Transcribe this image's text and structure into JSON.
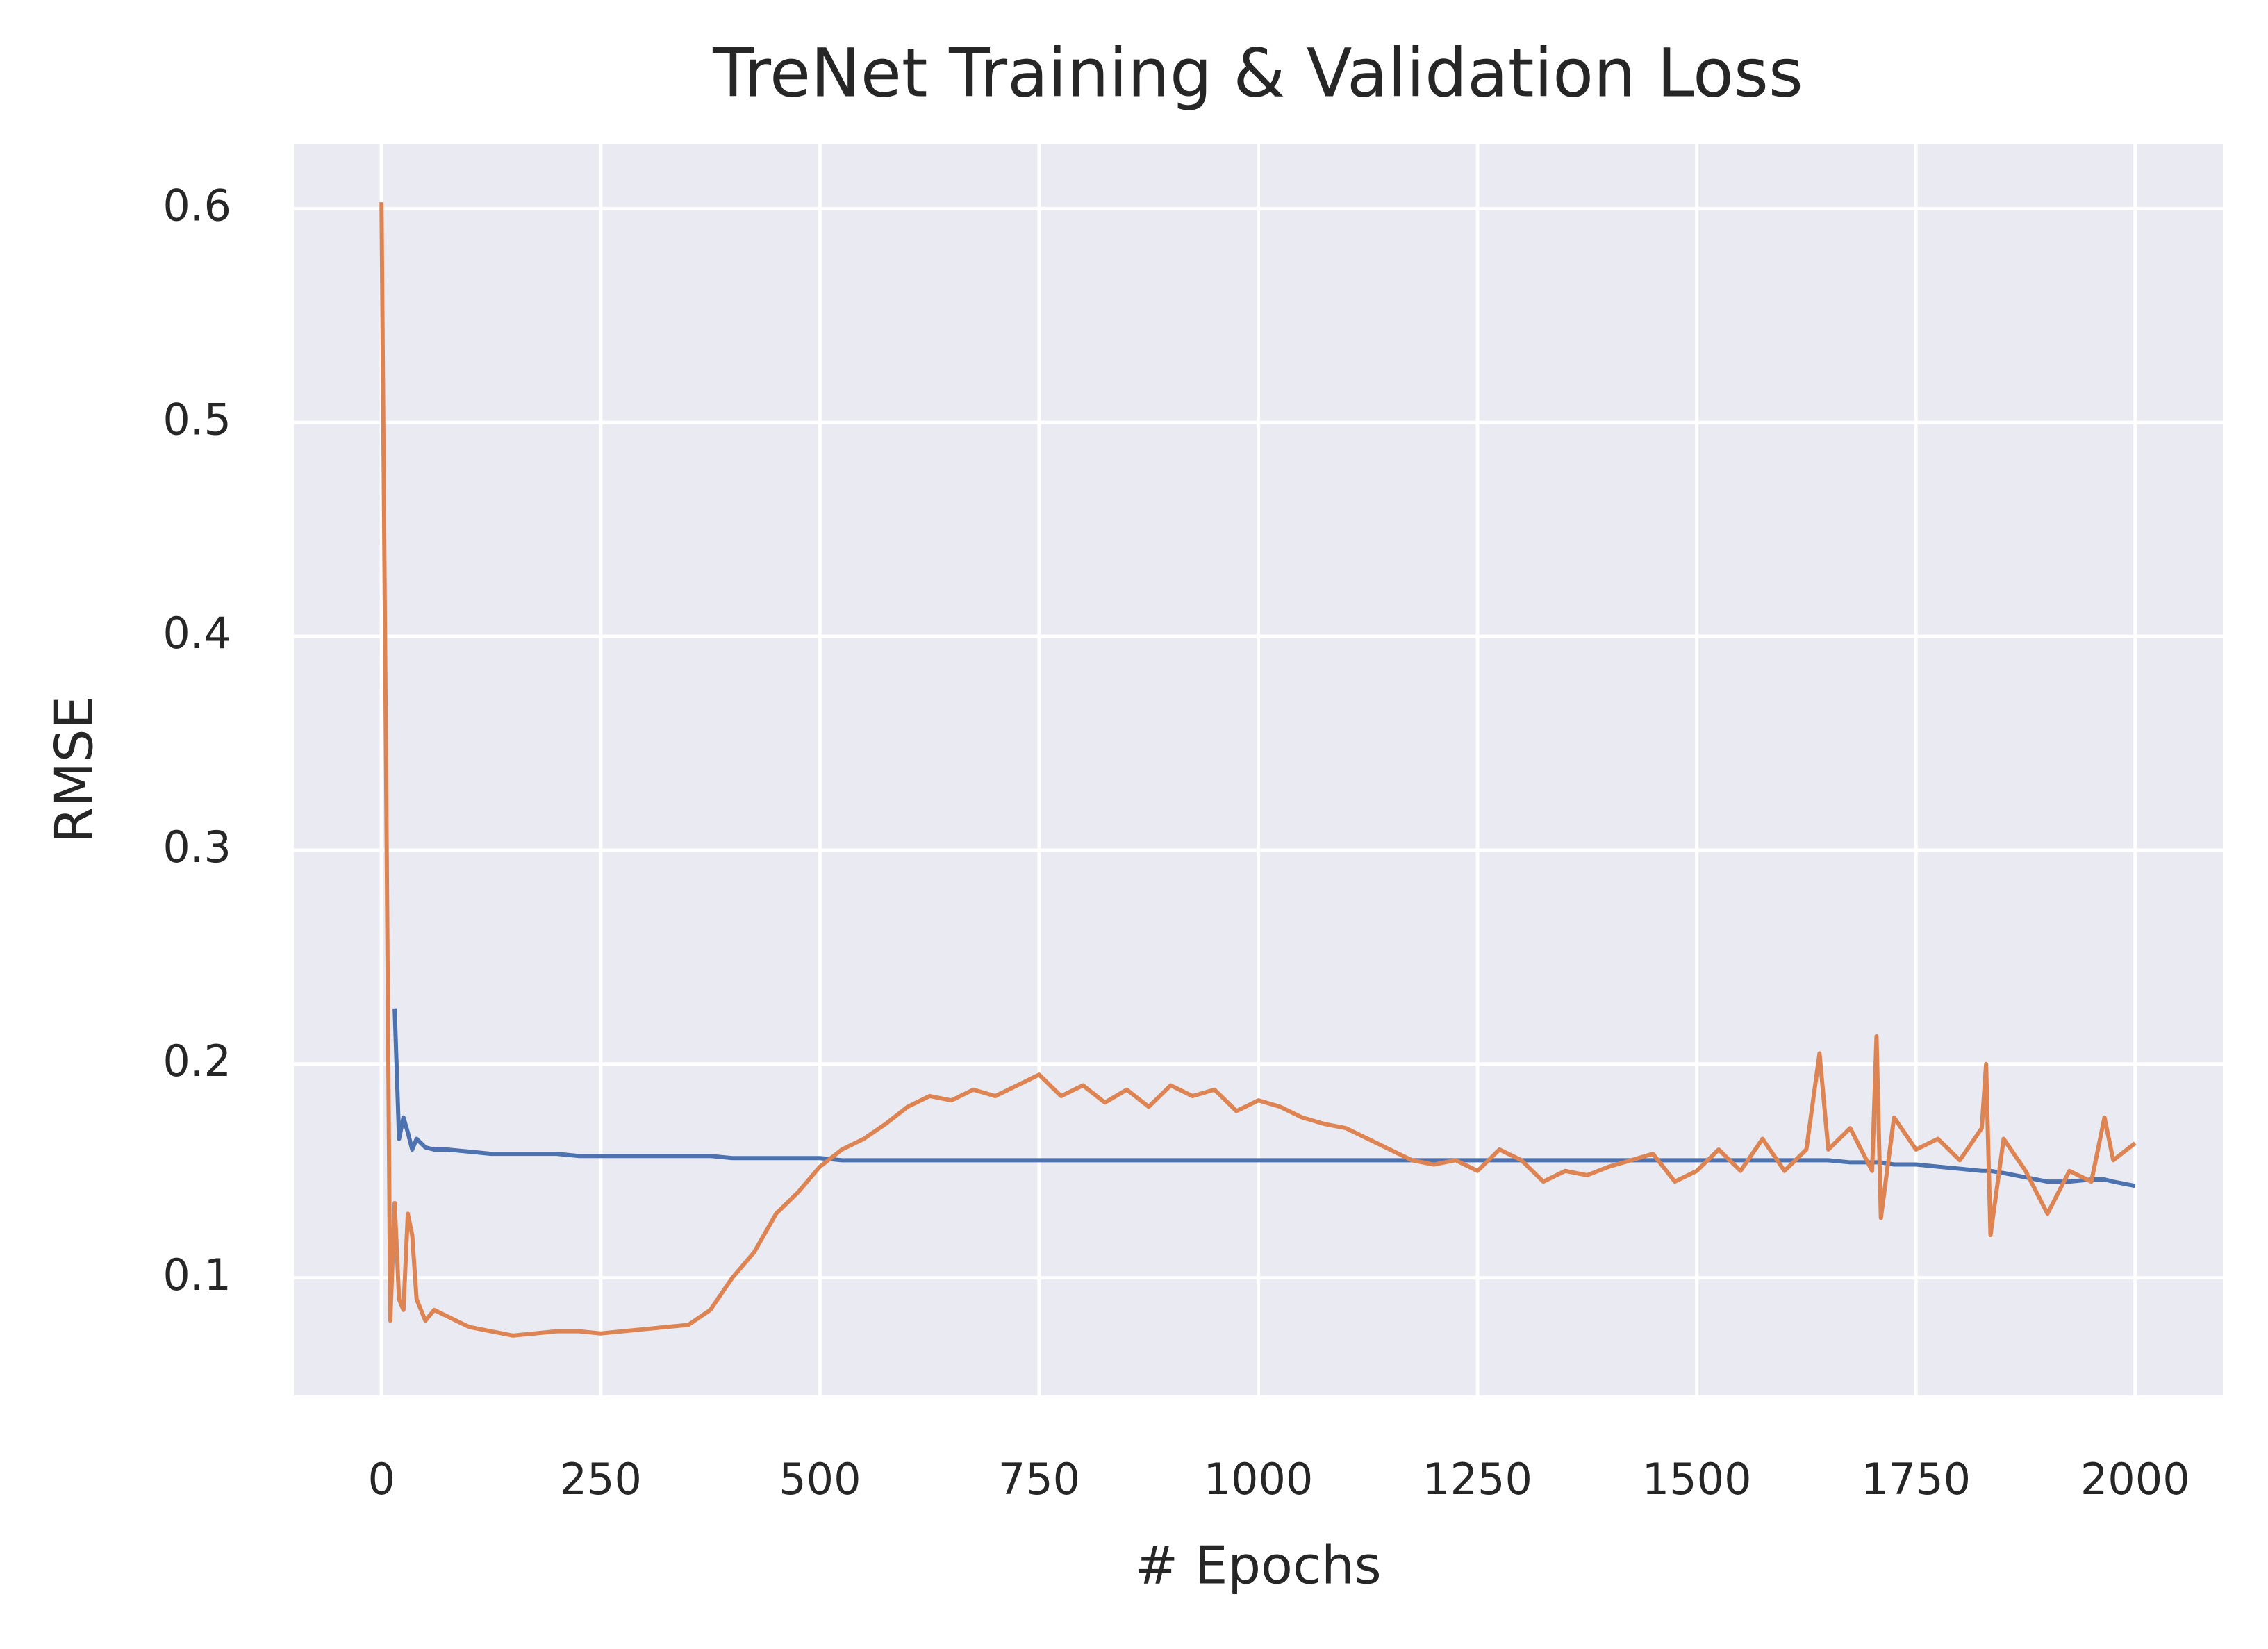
{
  "chart_data": {
    "type": "line",
    "title": "TreNet Training & Validation Loss",
    "xlabel": "# Epochs",
    "ylabel": "RMSE",
    "x": [
      0,
      5,
      10,
      15,
      20,
      25,
      30,
      35,
      40,
      50,
      60,
      75,
      100,
      125,
      150,
      175,
      200,
      225,
      250,
      275,
      300,
      325,
      350,
      375,
      400,
      425,
      450,
      475,
      500,
      525,
      550,
      575,
      600,
      625,
      650,
      675,
      700,
      725,
      750,
      775,
      800,
      825,
      850,
      875,
      900,
      925,
      950,
      975,
      1000,
      1025,
      1050,
      1075,
      1100,
      1125,
      1150,
      1175,
      1200,
      1225,
      1250,
      1275,
      1300,
      1325,
      1350,
      1375,
      1400,
      1425,
      1450,
      1475,
      1500,
      1525,
      1550,
      1575,
      1600,
      1625,
      1640,
      1650,
      1675,
      1700,
      1705,
      1710,
      1725,
      1750,
      1775,
      1800,
      1825,
      1830,
      1835,
      1850,
      1875,
      1900,
      1925,
      1950,
      1965,
      1975,
      2000
    ],
    "series": [
      {
        "color": "#4c72b0",
        "values": [
          null,
          null,
          null,
          0.226,
          0.165,
          0.175,
          0.168,
          0.16,
          0.165,
          0.161,
          0.16,
          0.16,
          0.159,
          0.158,
          0.158,
          0.158,
          0.158,
          0.157,
          0.157,
          0.157,
          0.157,
          0.157,
          0.157,
          0.157,
          0.156,
          0.156,
          0.156,
          0.156,
          0.156,
          0.155,
          0.155,
          0.155,
          0.155,
          0.155,
          0.155,
          0.155,
          0.155,
          0.155,
          0.155,
          0.155,
          0.155,
          0.155,
          0.155,
          0.155,
          0.155,
          0.155,
          0.155,
          0.155,
          0.155,
          0.155,
          0.155,
          0.155,
          0.155,
          0.155,
          0.155,
          0.155,
          0.155,
          0.155,
          0.155,
          0.155,
          0.155,
          0.155,
          0.155,
          0.155,
          0.155,
          0.155,
          0.155,
          0.155,
          0.155,
          0.155,
          0.155,
          0.155,
          0.155,
          0.155,
          0.155,
          0.155,
          0.154,
          0.154,
          0.154,
          0.154,
          0.153,
          0.153,
          0.152,
          0.151,
          0.15,
          0.15,
          0.15,
          0.149,
          0.147,
          0.145,
          0.145,
          0.146,
          0.146,
          0.145,
          0.143
        ]
      },
      {
        "color": "#dd8452",
        "values": [
          0.603,
          0.35,
          0.08,
          0.135,
          0.09,
          0.085,
          0.13,
          0.12,
          0.09,
          0.08,
          0.085,
          0.082,
          0.077,
          0.075,
          0.073,
          0.074,
          0.075,
          0.075,
          0.074,
          0.075,
          0.076,
          0.077,
          0.078,
          0.085,
          0.1,
          0.112,
          0.13,
          0.14,
          0.152,
          0.16,
          0.165,
          0.172,
          0.18,
          0.185,
          0.183,
          0.188,
          0.185,
          0.19,
          0.195,
          0.185,
          0.19,
          0.182,
          0.188,
          0.18,
          0.19,
          0.185,
          0.188,
          0.178,
          0.183,
          0.18,
          0.175,
          0.172,
          0.17,
          0.165,
          0.16,
          0.155,
          0.153,
          0.155,
          0.15,
          0.16,
          0.155,
          0.145,
          0.15,
          0.148,
          0.152,
          0.155,
          0.158,
          0.145,
          0.15,
          0.16,
          0.15,
          0.165,
          0.15,
          0.16,
          0.205,
          0.16,
          0.17,
          0.15,
          0.213,
          0.128,
          0.175,
          0.16,
          0.165,
          0.155,
          0.17,
          0.2,
          0.12,
          0.165,
          0.15,
          0.13,
          0.15,
          0.145,
          0.175,
          0.155,
          0.163
        ]
      }
    ],
    "xlim": [
      -100,
      2100
    ],
    "ylim": [
      0.045,
      0.63
    ],
    "xticks": [
      0,
      250,
      500,
      750,
      1000,
      1250,
      1500,
      1750,
      2000
    ],
    "yticks": [
      0.1,
      0.2,
      0.3,
      0.4,
      0.5,
      0.6
    ],
    "grid": true
  }
}
